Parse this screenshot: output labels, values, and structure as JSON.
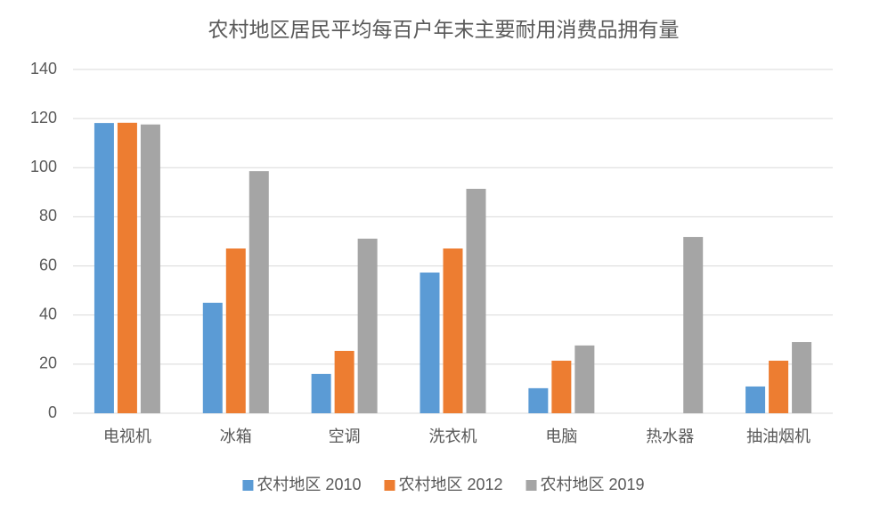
{
  "chart_data": {
    "type": "bar",
    "title": "农村地区居民平均每百户年末主要耐用消费品拥有量",
    "categories": [
      "电视机",
      "冰箱",
      "空调",
      "洗衣机",
      "电脑",
      "热水器",
      "抽油烟机"
    ],
    "series": [
      {
        "name": "农村地区 2010",
        "color": "#5b9bd5",
        "values": [
          118.2,
          45.0,
          16.0,
          57.3,
          10.2,
          null,
          10.9
        ]
      },
      {
        "name": "农村地区 2012",
        "color": "#ed7d31",
        "values": [
          118.3,
          67.1,
          25.4,
          67.1,
          21.4,
          null,
          21.4
        ]
      },
      {
        "name": "农村地区 2019",
        "color": "#a5a5a5",
        "values": [
          117.6,
          98.6,
          71.1,
          91.4,
          27.6,
          71.8,
          29.0
        ]
      }
    ],
    "ylim": [
      0,
      140
    ],
    "yticks": [
      0,
      20,
      40,
      60,
      80,
      100,
      120,
      140
    ],
    "grid": true,
    "legend": "bottom"
  }
}
